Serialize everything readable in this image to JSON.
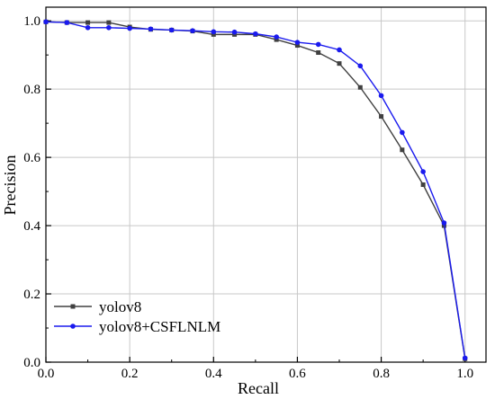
{
  "chart_data": {
    "type": "line",
    "xlabel": "Recall",
    "ylabel": "Precision",
    "xlim": [
      0.0,
      1.05
    ],
    "ylim": [
      0.0,
      1.04
    ],
    "x_ticks": [
      "0.0",
      "0.2",
      "0.4",
      "0.6",
      "0.8",
      "1.0"
    ],
    "y_ticks": [
      "0.0",
      "0.2",
      "0.4",
      "0.6",
      "0.8",
      "1.0"
    ],
    "grid": true,
    "legend_position": "bottom-left",
    "series": [
      {
        "name": "yolov8",
        "color": "#404040",
        "marker": "square",
        "points": [
          [
            0.0,
            0.997
          ],
          [
            0.05,
            0.995
          ],
          [
            0.1,
            0.995
          ],
          [
            0.15,
            0.995
          ],
          [
            0.2,
            0.982
          ],
          [
            0.25,
            0.975
          ],
          [
            0.3,
            0.973
          ],
          [
            0.35,
            0.97
          ],
          [
            0.4,
            0.96
          ],
          [
            0.45,
            0.96
          ],
          [
            0.5,
            0.96
          ],
          [
            0.55,
            0.945
          ],
          [
            0.6,
            0.928
          ],
          [
            0.65,
            0.907
          ],
          [
            0.7,
            0.875
          ],
          [
            0.75,
            0.805
          ],
          [
            0.8,
            0.72
          ],
          [
            0.85,
            0.622
          ],
          [
            0.9,
            0.52
          ],
          [
            0.95,
            0.4
          ],
          [
            1.0,
            0.01
          ]
        ]
      },
      {
        "name": "yolov8+CSFLNLM",
        "color": "#1a1aee",
        "marker": "circle",
        "points": [
          [
            0.0,
            0.997
          ],
          [
            0.05,
            0.995
          ],
          [
            0.1,
            0.98
          ],
          [
            0.15,
            0.98
          ],
          [
            0.2,
            0.978
          ],
          [
            0.25,
            0.976
          ],
          [
            0.3,
            0.973
          ],
          [
            0.35,
            0.971
          ],
          [
            0.4,
            0.968
          ],
          [
            0.45,
            0.967
          ],
          [
            0.5,
            0.962
          ],
          [
            0.55,
            0.953
          ],
          [
            0.6,
            0.937
          ],
          [
            0.65,
            0.931
          ],
          [
            0.7,
            0.915
          ],
          [
            0.75,
            0.868
          ],
          [
            0.8,
            0.781
          ],
          [
            0.85,
            0.673
          ],
          [
            0.9,
            0.558
          ],
          [
            0.95,
            0.408
          ],
          [
            1.0,
            0.012
          ]
        ]
      }
    ]
  }
}
